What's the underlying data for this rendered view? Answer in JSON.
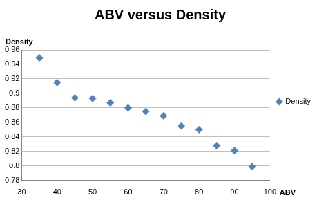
{
  "chart_data": {
    "type": "scatter",
    "title": "ABV versus Density",
    "x_label": "ABV",
    "y_label": "Density",
    "x": [
      35,
      40,
      45,
      50,
      55,
      60,
      65,
      70,
      75,
      80,
      85,
      90,
      95
    ],
    "series": [
      {
        "name": "Density",
        "color": "#4f81bd",
        "marker": "diamond",
        "values": [
          0.949,
          0.915,
          0.894,
          0.893,
          0.887,
          0.88,
          0.875,
          0.869,
          0.855,
          0.85,
          0.828,
          0.821,
          0.799
        ]
      }
    ],
    "xlim": [
      30,
      100
    ],
    "xticks": [
      30,
      40,
      50,
      60,
      70,
      80,
      90,
      100
    ],
    "ylim": [
      0.78,
      0.96
    ],
    "yticks": [
      0.78,
      0.8,
      0.82,
      0.84,
      0.86,
      0.88,
      0.9,
      0.92,
      0.94,
      0.96
    ],
    "grid": true,
    "legend": "right"
  }
}
